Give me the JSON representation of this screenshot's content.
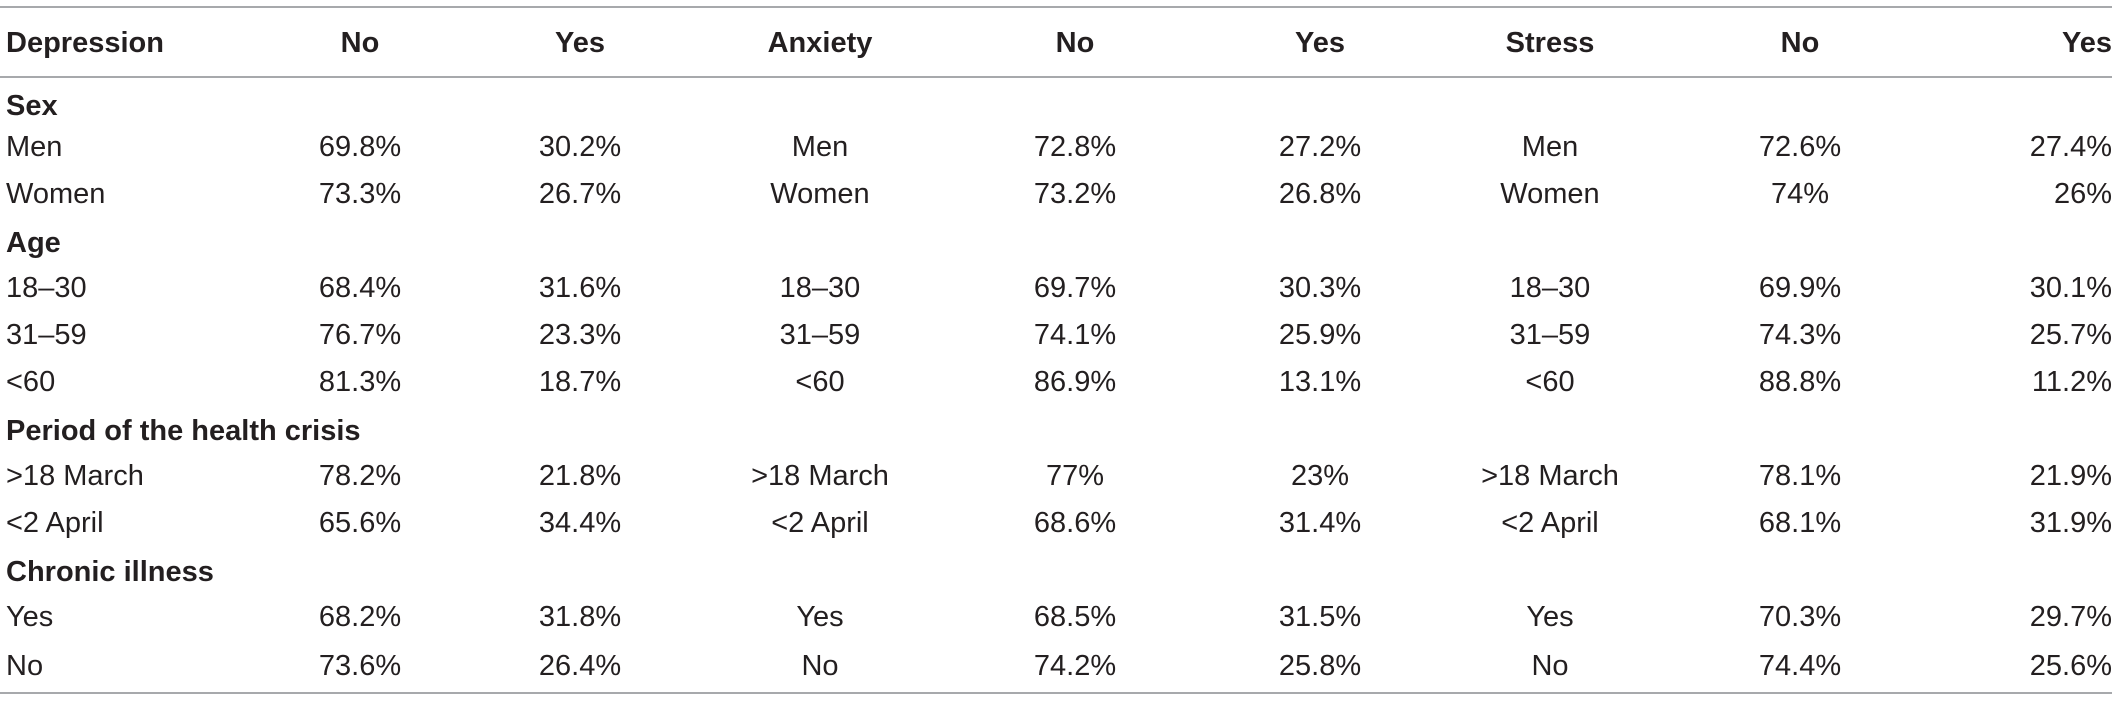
{
  "headers": [
    "Depression",
    "No",
    "Yes",
    "Anxiety",
    "No",
    "Yes",
    "Stress",
    "No",
    "Yes"
  ],
  "sections": [
    {
      "title": "Sex",
      "rows": [
        {
          "dep_label": "Men",
          "dep_no": "69.8%",
          "dep_yes": "30.2%",
          "anx_label": "Men",
          "anx_no": "72.8%",
          "anx_yes": "27.2%",
          "str_label": "Men",
          "str_no": "72.6%",
          "str_yes": "27.4%"
        },
        {
          "dep_label": "Women",
          "dep_no": "73.3%",
          "dep_yes": "26.7%",
          "anx_label": "Women",
          "anx_no": "73.2%",
          "anx_yes": "26.8%",
          "str_label": "Women",
          "str_no": "74%",
          "str_yes": "26%"
        }
      ]
    },
    {
      "title": "Age",
      "rows": [
        {
          "dep_label": "18–30",
          "dep_no": "68.4%",
          "dep_yes": "31.6%",
          "anx_label": "18–30",
          "anx_no": "69.7%",
          "anx_yes": "30.3%",
          "str_label": "18–30",
          "str_no": "69.9%",
          "str_yes": "30.1%"
        },
        {
          "dep_label": "31–59",
          "dep_no": "76.7%",
          "dep_yes": "23.3%",
          "anx_label": "31–59",
          "anx_no": "74.1%",
          "anx_yes": "25.9%",
          "str_label": "31–59",
          "str_no": "74.3%",
          "str_yes": "25.7%"
        },
        {
          "dep_label": "<60",
          "dep_no": "81.3%",
          "dep_yes": "18.7%",
          "anx_label": "<60",
          "anx_no": "86.9%",
          "anx_yes": "13.1%",
          "str_label": "<60",
          "str_no": "88.8%",
          "str_yes": "11.2%"
        }
      ]
    },
    {
      "title": "Period of the health crisis",
      "rows": [
        {
          "dep_label": ">18 March",
          "dep_no": "78.2%",
          "dep_yes": "21.8%",
          "anx_label": ">18 March",
          "anx_no": "77%",
          "anx_yes": "23%",
          "str_label": ">18 March",
          "str_no": "78.1%",
          "str_yes": "21.9%"
        },
        {
          "dep_label": "<2 April",
          "dep_no": "65.6%",
          "dep_yes": "34.4%",
          "anx_label": "<2 April",
          "anx_no": "68.6%",
          "anx_yes": "31.4%",
          "str_label": "<2 April",
          "str_no": "68.1%",
          "str_yes": "31.9%"
        }
      ]
    },
    {
      "title": "Chronic illness",
      "rows": [
        {
          "dep_label": "Yes",
          "dep_no": "68.2%",
          "dep_yes": "31.8%",
          "anx_label": "Yes",
          "anx_no": "68.5%",
          "anx_yes": "31.5%",
          "str_label": "Yes",
          "str_no": "70.3%",
          "str_yes": "29.7%"
        },
        {
          "dep_label": "No",
          "dep_no": "73.6%",
          "dep_yes": "26.4%",
          "anx_label": "No",
          "anx_no": "74.2%",
          "anx_yes": "25.8%",
          "str_label": "No",
          "str_no": "74.4%",
          "str_yes": "25.6%"
        }
      ]
    }
  ]
}
